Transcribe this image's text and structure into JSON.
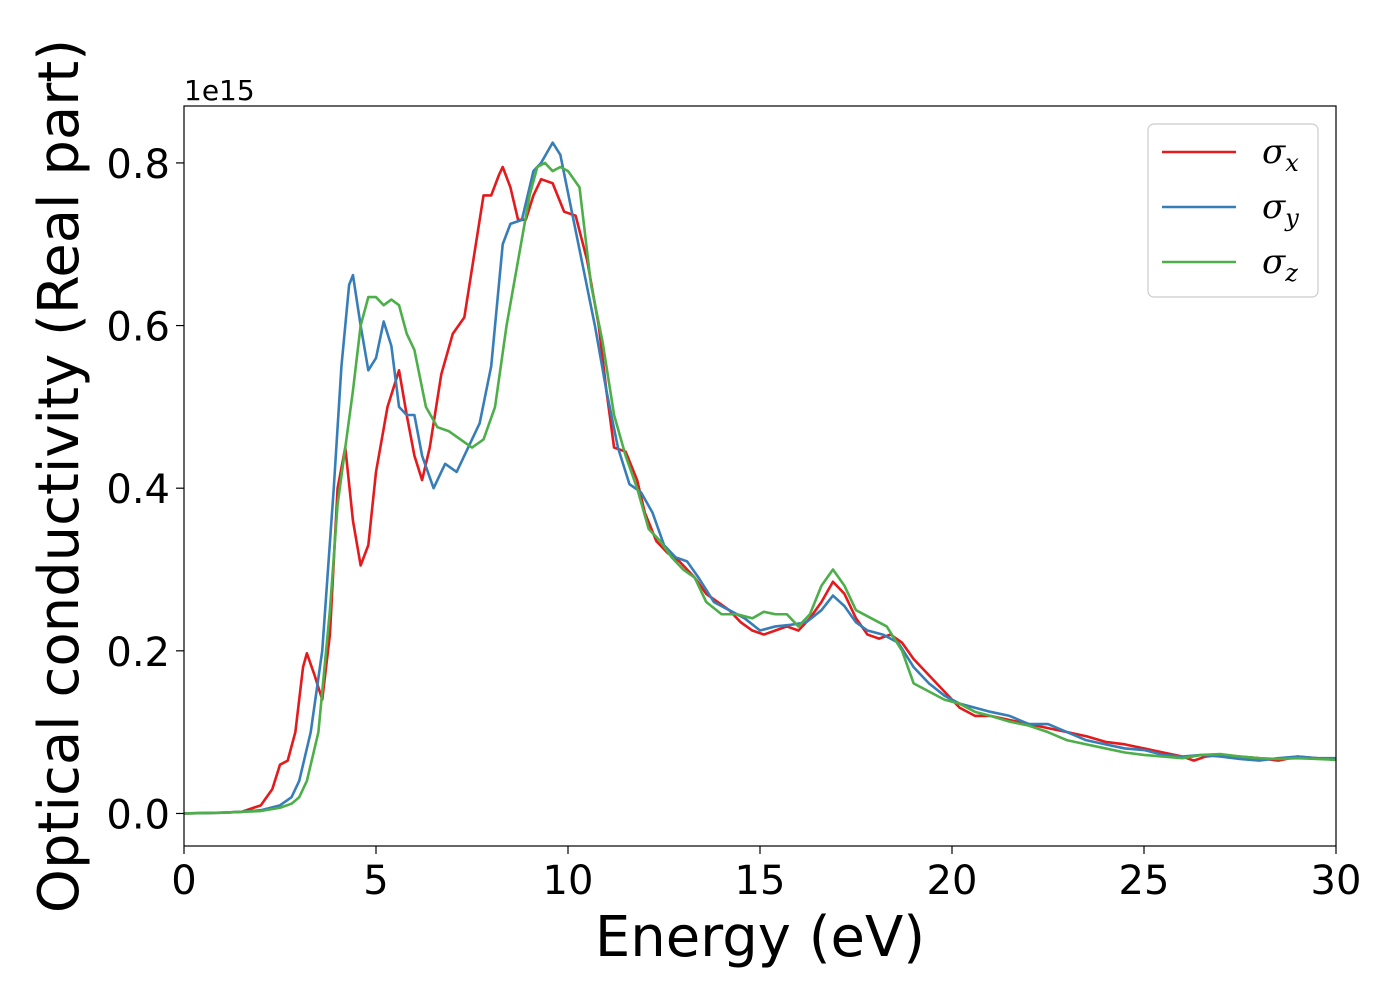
{
  "chart_data": {
    "type": "line",
    "title": "",
    "xlabel": "Energy (eV)",
    "ylabel": "Optical conductivity (Real part)",
    "y_offset_label": "1e15",
    "xlim": [
      0,
      30
    ],
    "ylim": [
      -0.04,
      0.87
    ],
    "x_ticks": [
      0,
      5,
      10,
      15,
      20,
      25,
      30
    ],
    "y_ticks": [
      0.0,
      0.2,
      0.4,
      0.6,
      0.8
    ],
    "x_tick_labels": [
      "0",
      "5",
      "10",
      "15",
      "20",
      "25",
      "30"
    ],
    "y_tick_labels": [
      "0.0",
      "0.2",
      "0.4",
      "0.6",
      "0.8"
    ],
    "grid": false,
    "legend": "top-right",
    "series": [
      {
        "name": "σx",
        "symbol": "σ",
        "sub": "x",
        "color": "#e41a1c",
        "points": [
          [
            0,
            0
          ],
          [
            1,
            0.001
          ],
          [
            1.5,
            0.002
          ],
          [
            2,
            0.01
          ],
          [
            2.3,
            0.03
          ],
          [
            2.5,
            0.06
          ],
          [
            2.7,
            0.065
          ],
          [
            2.9,
            0.1
          ],
          [
            3.1,
            0.18
          ],
          [
            3.2,
            0.197
          ],
          [
            3.4,
            0.17
          ],
          [
            3.6,
            0.14
          ],
          [
            3.8,
            0.22
          ],
          [
            4.0,
            0.4
          ],
          [
            4.2,
            0.45
          ],
          [
            4.4,
            0.36
          ],
          [
            4.6,
            0.305
          ],
          [
            4.8,
            0.33
          ],
          [
            5.0,
            0.42
          ],
          [
            5.3,
            0.5
          ],
          [
            5.6,
            0.545
          ],
          [
            5.8,
            0.49
          ],
          [
            6.0,
            0.44
          ],
          [
            6.2,
            0.41
          ],
          [
            6.4,
            0.45
          ],
          [
            6.7,
            0.54
          ],
          [
            7.0,
            0.59
          ],
          [
            7.3,
            0.61
          ],
          [
            7.6,
            0.7
          ],
          [
            7.8,
            0.76
          ],
          [
            8.0,
            0.76
          ],
          [
            8.2,
            0.785
          ],
          [
            8.3,
            0.795
          ],
          [
            8.5,
            0.77
          ],
          [
            8.7,
            0.73
          ],
          [
            8.9,
            0.73
          ],
          [
            9.1,
            0.76
          ],
          [
            9.3,
            0.78
          ],
          [
            9.6,
            0.775
          ],
          [
            9.9,
            0.74
          ],
          [
            10.2,
            0.735
          ],
          [
            10.5,
            0.68
          ],
          [
            10.8,
            0.6
          ],
          [
            11.0,
            0.52
          ],
          [
            11.2,
            0.45
          ],
          [
            11.5,
            0.445
          ],
          [
            11.8,
            0.41
          ],
          [
            12.0,
            0.37
          ],
          [
            12.3,
            0.335
          ],
          [
            12.6,
            0.32
          ],
          [
            12.9,
            0.31
          ],
          [
            13.3,
            0.29
          ],
          [
            13.6,
            0.27
          ],
          [
            13.9,
            0.26
          ],
          [
            14.2,
            0.25
          ],
          [
            14.5,
            0.235
          ],
          [
            14.8,
            0.225
          ],
          [
            15.1,
            0.22
          ],
          [
            15.4,
            0.225
          ],
          [
            15.7,
            0.23
          ],
          [
            16.0,
            0.225
          ],
          [
            16.3,
            0.24
          ],
          [
            16.6,
            0.26
          ],
          [
            16.9,
            0.285
          ],
          [
            17.2,
            0.27
          ],
          [
            17.5,
            0.24
          ],
          [
            17.8,
            0.22
          ],
          [
            18.1,
            0.215
          ],
          [
            18.4,
            0.22
          ],
          [
            18.7,
            0.21
          ],
          [
            19.0,
            0.19
          ],
          [
            19.4,
            0.17
          ],
          [
            19.8,
            0.15
          ],
          [
            20.2,
            0.13
          ],
          [
            20.6,
            0.12
          ],
          [
            21.0,
            0.12
          ],
          [
            21.5,
            0.115
          ],
          [
            22.0,
            0.11
          ],
          [
            22.5,
            0.105
          ],
          [
            23.0,
            0.1
          ],
          [
            23.5,
            0.095
          ],
          [
            24.0,
            0.088
          ],
          [
            24.5,
            0.085
          ],
          [
            25.0,
            0.08
          ],
          [
            25.5,
            0.075
          ],
          [
            26.0,
            0.07
          ],
          [
            26.3,
            0.065
          ],
          [
            26.6,
            0.07
          ],
          [
            27.0,
            0.072
          ],
          [
            27.5,
            0.07
          ],
          [
            28.0,
            0.068
          ],
          [
            28.5,
            0.065
          ],
          [
            29.0,
            0.07
          ],
          [
            29.5,
            0.068
          ],
          [
            30.0,
            0.066
          ]
        ]
      },
      {
        "name": "σy",
        "symbol": "σ",
        "sub": "y",
        "color": "#377eb8",
        "points": [
          [
            0,
            0
          ],
          [
            1,
            0.001
          ],
          [
            1.5,
            0.002
          ],
          [
            2,
            0.004
          ],
          [
            2.5,
            0.01
          ],
          [
            2.8,
            0.02
          ],
          [
            3.0,
            0.04
          ],
          [
            3.3,
            0.1
          ],
          [
            3.6,
            0.2
          ],
          [
            3.9,
            0.4
          ],
          [
            4.1,
            0.55
          ],
          [
            4.3,
            0.65
          ],
          [
            4.4,
            0.662
          ],
          [
            4.6,
            0.6
          ],
          [
            4.8,
            0.545
          ],
          [
            5.0,
            0.56
          ],
          [
            5.2,
            0.605
          ],
          [
            5.4,
            0.575
          ],
          [
            5.6,
            0.5
          ],
          [
            5.8,
            0.49
          ],
          [
            6.0,
            0.49
          ],
          [
            6.2,
            0.44
          ],
          [
            6.5,
            0.4
          ],
          [
            6.8,
            0.43
          ],
          [
            7.1,
            0.42
          ],
          [
            7.4,
            0.45
          ],
          [
            7.7,
            0.48
          ],
          [
            8.0,
            0.55
          ],
          [
            8.3,
            0.7
          ],
          [
            8.5,
            0.725
          ],
          [
            8.8,
            0.73
          ],
          [
            9.1,
            0.79
          ],
          [
            9.3,
            0.8
          ],
          [
            9.6,
            0.825
          ],
          [
            9.8,
            0.81
          ],
          [
            10.1,
            0.74
          ],
          [
            10.4,
            0.67
          ],
          [
            10.7,
            0.6
          ],
          [
            11.0,
            0.52
          ],
          [
            11.3,
            0.45
          ],
          [
            11.6,
            0.405
          ],
          [
            11.9,
            0.395
          ],
          [
            12.2,
            0.37
          ],
          [
            12.5,
            0.33
          ],
          [
            12.8,
            0.315
          ],
          [
            13.1,
            0.31
          ],
          [
            13.4,
            0.29
          ],
          [
            13.8,
            0.26
          ],
          [
            14.2,
            0.25
          ],
          [
            14.6,
            0.24
          ],
          [
            15.0,
            0.225
          ],
          [
            15.4,
            0.23
          ],
          [
            15.8,
            0.232
          ],
          [
            16.2,
            0.235
          ],
          [
            16.6,
            0.25
          ],
          [
            16.9,
            0.268
          ],
          [
            17.2,
            0.255
          ],
          [
            17.5,
            0.235
          ],
          [
            17.8,
            0.225
          ],
          [
            18.2,
            0.22
          ],
          [
            18.6,
            0.21
          ],
          [
            19.0,
            0.18
          ],
          [
            19.4,
            0.16
          ],
          [
            19.8,
            0.145
          ],
          [
            20.2,
            0.135
          ],
          [
            20.6,
            0.13
          ],
          [
            21.0,
            0.125
          ],
          [
            21.5,
            0.12
          ],
          [
            22.0,
            0.11
          ],
          [
            22.5,
            0.11
          ],
          [
            23.0,
            0.1
          ],
          [
            23.5,
            0.09
          ],
          [
            24.0,
            0.085
          ],
          [
            24.5,
            0.08
          ],
          [
            25.0,
            0.078
          ],
          [
            25.5,
            0.072
          ],
          [
            26.0,
            0.07
          ],
          [
            26.5,
            0.072
          ],
          [
            27.0,
            0.07
          ],
          [
            27.5,
            0.067
          ],
          [
            28.0,
            0.065
          ],
          [
            28.5,
            0.068
          ],
          [
            29.0,
            0.07
          ],
          [
            29.5,
            0.068
          ],
          [
            30.0,
            0.068
          ]
        ]
      },
      {
        "name": "σz",
        "symbol": "σ",
        "sub": "z",
        "color": "#4daf4a",
        "points": [
          [
            0,
            0
          ],
          [
            1,
            0.001
          ],
          [
            1.5,
            0.002
          ],
          [
            2,
            0.003
          ],
          [
            2.5,
            0.007
          ],
          [
            2.8,
            0.012
          ],
          [
            3.0,
            0.02
          ],
          [
            3.2,
            0.04
          ],
          [
            3.5,
            0.1
          ],
          [
            3.8,
            0.25
          ],
          [
            4.0,
            0.38
          ],
          [
            4.2,
            0.45
          ],
          [
            4.4,
            0.52
          ],
          [
            4.6,
            0.6
          ],
          [
            4.8,
            0.635
          ],
          [
            5.0,
            0.635
          ],
          [
            5.2,
            0.625
          ],
          [
            5.4,
            0.632
          ],
          [
            5.6,
            0.625
          ],
          [
            5.8,
            0.59
          ],
          [
            6.0,
            0.57
          ],
          [
            6.3,
            0.5
          ],
          [
            6.6,
            0.475
          ],
          [
            6.9,
            0.47
          ],
          [
            7.2,
            0.46
          ],
          [
            7.5,
            0.45
          ],
          [
            7.8,
            0.46
          ],
          [
            8.1,
            0.5
          ],
          [
            8.4,
            0.6
          ],
          [
            8.7,
            0.68
          ],
          [
            9.0,
            0.76
          ],
          [
            9.2,
            0.795
          ],
          [
            9.4,
            0.8
          ],
          [
            9.6,
            0.79
          ],
          [
            9.8,
            0.795
          ],
          [
            10.0,
            0.79
          ],
          [
            10.3,
            0.77
          ],
          [
            10.6,
            0.65
          ],
          [
            10.9,
            0.58
          ],
          [
            11.2,
            0.49
          ],
          [
            11.5,
            0.44
          ],
          [
            11.8,
            0.4
          ],
          [
            12.1,
            0.35
          ],
          [
            12.4,
            0.335
          ],
          [
            12.7,
            0.315
          ],
          [
            13.0,
            0.3
          ],
          [
            13.3,
            0.29
          ],
          [
            13.6,
            0.26
          ],
          [
            14.0,
            0.245
          ],
          [
            14.4,
            0.245
          ],
          [
            14.8,
            0.24
          ],
          [
            15.1,
            0.248
          ],
          [
            15.4,
            0.245
          ],
          [
            15.7,
            0.245
          ],
          [
            16.0,
            0.23
          ],
          [
            16.3,
            0.245
          ],
          [
            16.6,
            0.28
          ],
          [
            16.9,
            0.3
          ],
          [
            17.2,
            0.28
          ],
          [
            17.5,
            0.25
          ],
          [
            17.9,
            0.24
          ],
          [
            18.3,
            0.23
          ],
          [
            18.7,
            0.2
          ],
          [
            19.0,
            0.16
          ],
          [
            19.4,
            0.15
          ],
          [
            19.8,
            0.14
          ],
          [
            20.2,
            0.135
          ],
          [
            20.6,
            0.125
          ],
          [
            21.0,
            0.12
          ],
          [
            21.5,
            0.113
          ],
          [
            22.0,
            0.108
          ],
          [
            22.5,
            0.1
          ],
          [
            23.0,
            0.09
          ],
          [
            23.5,
            0.085
          ],
          [
            24.0,
            0.08
          ],
          [
            24.5,
            0.075
          ],
          [
            25.0,
            0.072
          ],
          [
            25.5,
            0.07
          ],
          [
            26.0,
            0.068
          ],
          [
            26.5,
            0.072
          ],
          [
            27.0,
            0.073
          ],
          [
            27.5,
            0.07
          ],
          [
            28.0,
            0.068
          ],
          [
            28.5,
            0.067
          ],
          [
            29.0,
            0.068
          ],
          [
            29.5,
            0.067
          ],
          [
            30.0,
            0.066
          ]
        ]
      }
    ]
  }
}
